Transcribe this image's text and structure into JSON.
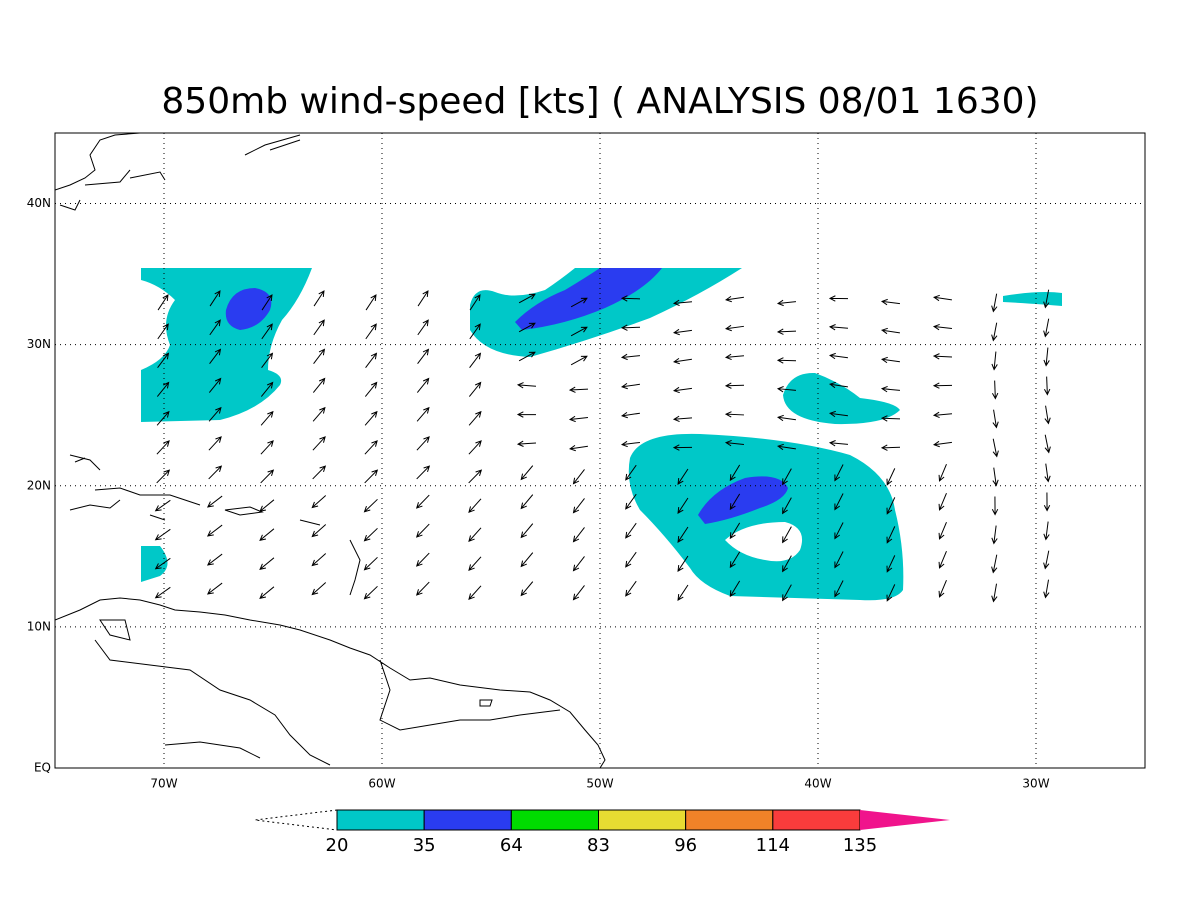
{
  "title": "850mb wind-speed [kts] ( ANALYSIS 08/01 1630)",
  "map": {
    "xlim": [
      -75,
      -25
    ],
    "ylim": [
      0,
      45
    ],
    "lon_ticks": [
      {
        "value": -70,
        "label": "70W"
      },
      {
        "value": -60,
        "label": "60W"
      },
      {
        "value": -50,
        "label": "50W"
      },
      {
        "value": -40,
        "label": "40W"
      },
      {
        "value": -30,
        "label": "30W"
      }
    ],
    "lat_ticks": [
      {
        "value": 0,
        "label": "EQ"
      },
      {
        "value": 10,
        "label": "10N"
      },
      {
        "value": 20,
        "label": "20N"
      },
      {
        "value": 30,
        "label": "30N"
      },
      {
        "value": 40,
        "label": "40N"
      }
    ]
  },
  "colorbar": {
    "levels": [
      20,
      35,
      64,
      83,
      96,
      114,
      135
    ],
    "colors": [
      "#00c8c8",
      "#2a3cf0",
      "#00dc00",
      "#e6dc32",
      "#f08228",
      "#fa3c3c",
      "#f0148c"
    ]
  }
}
